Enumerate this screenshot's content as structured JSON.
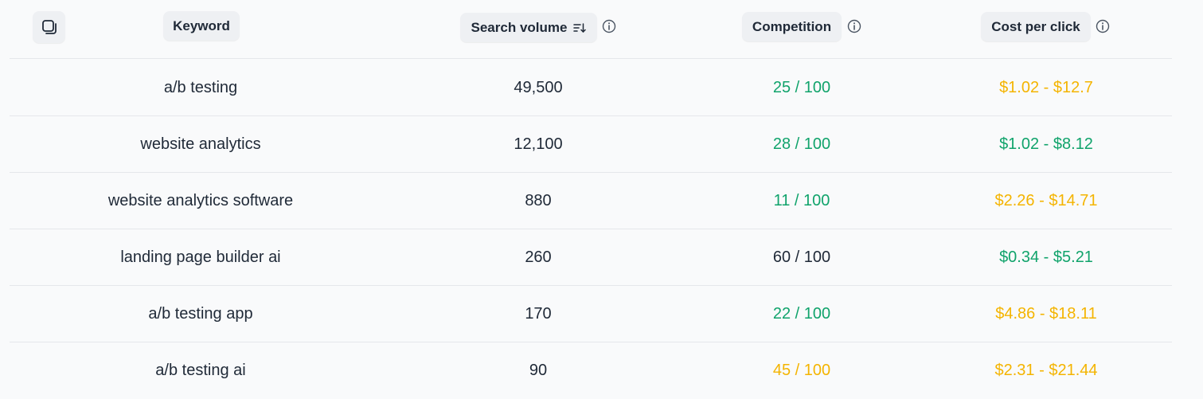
{
  "header": {
    "keyword_label": "Keyword",
    "volume_label": "Search volume",
    "competition_label": "Competition",
    "cpc_label": "Cost per click"
  },
  "colors": {
    "low": "#10a36b",
    "medium": "#f4b400",
    "high": "#1f2937"
  },
  "rows": [
    {
      "keyword": "a/b testing",
      "volume": "49,500",
      "competition": "25 / 100",
      "competition_level": "low",
      "cpc": "$1.02 - $12.7",
      "cpc_level": "medium"
    },
    {
      "keyword": "website analytics",
      "volume": "12,100",
      "competition": "28 / 100",
      "competition_level": "low",
      "cpc": "$1.02 - $8.12",
      "cpc_level": "low"
    },
    {
      "keyword": "website analytics software",
      "volume": "880",
      "competition": "11 / 100",
      "competition_level": "low",
      "cpc": "$2.26 - $14.71",
      "cpc_level": "medium"
    },
    {
      "keyword": "landing page builder ai",
      "volume": "260",
      "competition": "60 / 100",
      "competition_level": "high",
      "cpc": "$0.34 - $5.21",
      "cpc_level": "low"
    },
    {
      "keyword": "a/b testing app",
      "volume": "170",
      "competition": "22 / 100",
      "competition_level": "low",
      "cpc": "$4.86 - $18.11",
      "cpc_level": "medium"
    },
    {
      "keyword": "a/b testing ai",
      "volume": "90",
      "competition": "45 / 100",
      "competition_level": "medium",
      "cpc": "$2.31 - $21.44",
      "cpc_level": "medium"
    }
  ]
}
